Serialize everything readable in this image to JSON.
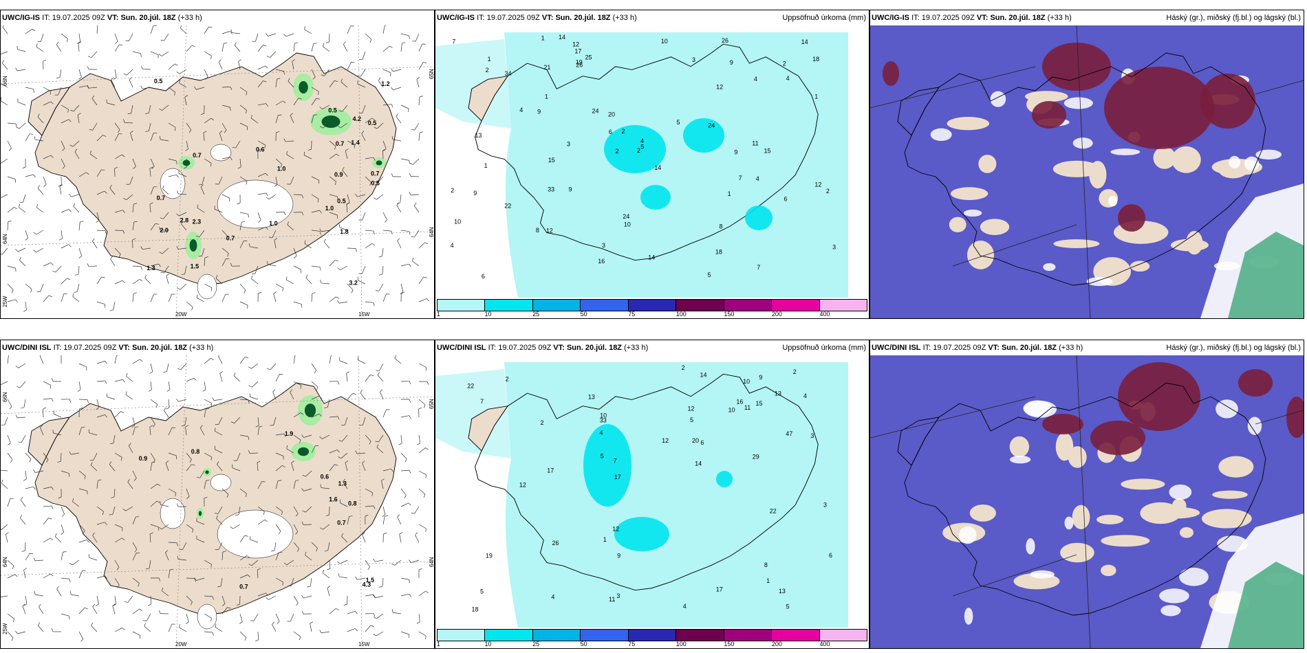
{
  "panels": [
    {
      "model": "UWC/IG-IS",
      "it_label": "IT:",
      "it": "19.07.2025 09Z",
      "vt_label": "VT:",
      "vt": "Sun. 20.júl. 18Z",
      "lead": "(+33 h)",
      "right_title": "",
      "type": "wind",
      "labels": [
        "1.4",
        "0.7",
        "1.0",
        "1.3",
        "3.2",
        "0.5",
        "1.0",
        "2.0",
        "1.8",
        "0.7",
        "1.2",
        "0.5",
        "2.8",
        "4.2",
        "0.6",
        "1.0",
        "0.7",
        "0.9",
        "0.5",
        "0.5",
        "1.5",
        "0.7",
        "0.7",
        "0.5",
        "2.3"
      ]
    },
    {
      "model": "UWC/IG-IS",
      "it_label": "IT:",
      "it": "19.07.2025 09Z",
      "vt_label": "VT:",
      "vt": "Sun. 20.júl. 18Z",
      "lead": "(+33 h)",
      "right_title": "Uppsöfnuð úrkoma (mm)",
      "type": "precip",
      "labels": [
        "2",
        "2",
        "1",
        "3",
        "5",
        "4",
        "4",
        "3",
        "7",
        "14",
        "9",
        "9",
        "24",
        "12",
        "22",
        "26",
        "21",
        "17",
        "15",
        "14",
        "18",
        "25",
        "34",
        "26",
        "19",
        "20",
        "15",
        "14",
        "24",
        "9",
        "12",
        "33",
        "2",
        "2",
        "4",
        "8",
        "12",
        "9",
        "10",
        "13",
        "14",
        "24",
        "12",
        "5",
        "10",
        "11",
        "8",
        "6",
        "7",
        "9",
        "16",
        "18",
        "6",
        "4",
        "4",
        "5",
        "3",
        "2",
        "1",
        "1",
        "2",
        "1",
        "1",
        "1",
        "3",
        "2",
        "10",
        "6",
        "7",
        "4"
      ]
    },
    {
      "model": "UWC/IG-IS",
      "it_label": "IT:",
      "it": "19.07.2025 09Z",
      "vt_label": "VT:",
      "vt": "Sun. 20.júl. 18Z",
      "lead": "(+33 h)",
      "right_title": "Háský (gr.), miðský (fj.bl.) og lágský (bl.)",
      "type": "cloud",
      "labels": []
    },
    {
      "model": "UWC/DINI ISL",
      "it_label": "IT:",
      "it": "19.07.2025 09Z",
      "vt_label": "VT:",
      "vt": "Sun. 20.júl. 18Z",
      "lead": "(+33 h)",
      "right_title": "",
      "type": "wind",
      "labels": [
        "4.3",
        "1.3",
        "1.6",
        "0.8",
        "0.7",
        "1.9",
        "0.6",
        "0.9",
        "0.8",
        "0.7",
        "1.5"
      ]
    },
    {
      "model": "UWC/DINI ISL",
      "it_label": "IT:",
      "it": "19.07.2025 09Z",
      "vt_label": "VT:",
      "vt": "Sun. 20.júl. 18Z",
      "lead": "(+33 h)",
      "right_title": "Uppsöfnuð úrkoma (mm)",
      "type": "precip",
      "labels": [
        "4",
        "4",
        "3",
        "2",
        "5",
        "5",
        "10",
        "19",
        "7",
        "9",
        "11",
        "14",
        "13",
        "17",
        "20",
        "22",
        "11",
        "10",
        "12",
        "18",
        "17",
        "16",
        "17",
        "12",
        "13",
        "14",
        "12",
        "13",
        "26",
        "29",
        "22",
        "47",
        "33",
        "15",
        "9",
        "10",
        "12",
        "5",
        "2",
        "4",
        "3",
        "2",
        "6",
        "5",
        "1",
        "4",
        "3",
        "2",
        "1",
        "6",
        "8",
        "7"
      ]
    },
    {
      "model": "UWC/DINI ISL",
      "it_label": "IT:",
      "it": "19.07.2025 09Z",
      "vt_label": "VT:",
      "vt": "Sun. 20.júl. 18Z",
      "lead": "(+33 h)",
      "right_title": "Háský (gr.), miðský (fj.bl.) og lágský (bl.)",
      "type": "cloud",
      "labels": []
    }
  ],
  "axis": {
    "lon_labels": [
      "20W",
      "15W"
    ],
    "left_lats": [
      "66N",
      "64N",
      "25W"
    ],
    "right_lats": [
      "65N",
      "64N"
    ]
  },
  "legend": {
    "ticks": [
      "1",
      "10",
      "25",
      "50",
      "75",
      "100",
      "150",
      "200",
      "400"
    ],
    "colors": [
      "#b4f5f5",
      "#00e6ee",
      "#00b4e6",
      "#3264f0",
      "#2828b4",
      "#6e0050",
      "#a0007e",
      "#e600a0",
      "#f5b4f0"
    ]
  },
  "colors": {
    "land": "#ecdccb",
    "precip_light": "#b4f5f5",
    "precip_mid": "#00e6ee",
    "cloud_low": "#5a5ac8",
    "cloud_high": "#7a1e3c",
    "cloud_mid": "#e6e6f0",
    "green_light": "#98f098",
    "green_dark": "#0a5a2a"
  }
}
